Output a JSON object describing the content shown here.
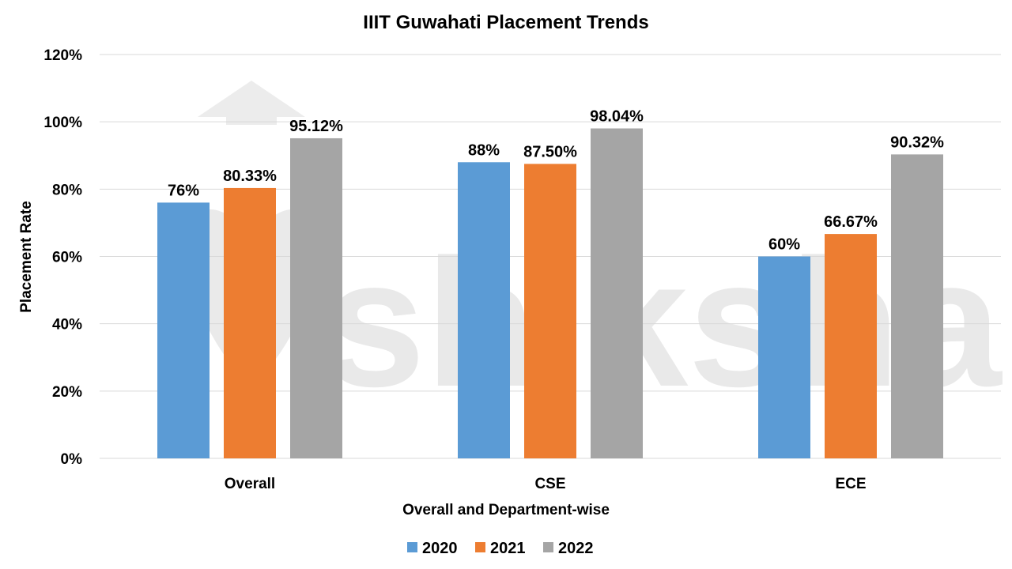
{
  "chart_data": {
    "type": "bar",
    "title": "IIIT Guwahati Placement Trends",
    "xlabel": "Overall and Department-wise",
    "ylabel": "Placement Rate",
    "categories": [
      "Overall",
      "CSE",
      "ECE"
    ],
    "series": [
      {
        "name": "2020",
        "color": "#5b9bd5",
        "values": [
          76,
          88,
          60
        ],
        "labels": [
          "76%",
          "88%",
          "60%"
        ]
      },
      {
        "name": "2021",
        "color": "#ed7d31",
        "values": [
          80.33,
          87.5,
          66.67
        ],
        "labels": [
          "80.33%",
          "87.50%",
          "66.67%"
        ]
      },
      {
        "name": "2022",
        "color": "#a5a5a5",
        "values": [
          95.12,
          98.04,
          90.32
        ],
        "labels": [
          "95.12%",
          "98.04%",
          "90.32%"
        ]
      }
    ],
    "ylim": [
      0,
      120
    ],
    "yticks": [
      "0%",
      "20%",
      "40%",
      "60%",
      "80%",
      "100%",
      "120%"
    ],
    "grid": true,
    "legend_position": "bottom"
  },
  "watermark": {
    "text": "shiksha"
  }
}
